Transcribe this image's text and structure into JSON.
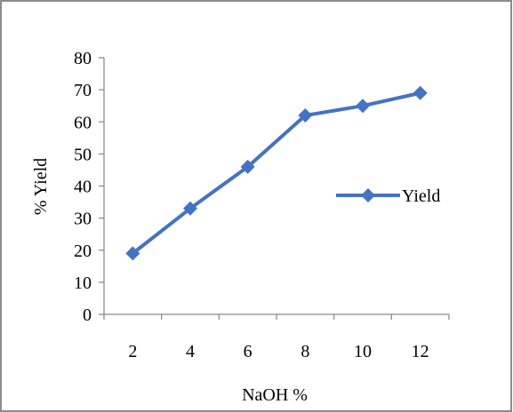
{
  "chart_data": {
    "type": "line",
    "title": "",
    "xlabel": "NaOH %",
    "ylabel": "% Yield",
    "categories": [
      "2",
      "4",
      "6",
      "8",
      "10",
      "12"
    ],
    "series": [
      {
        "name": "Yield",
        "values": [
          19,
          33,
          46,
          62,
          65,
          69
        ]
      }
    ],
    "ylim": [
      0,
      80
    ],
    "yticks": [
      "0",
      "10",
      "20",
      "30",
      "40",
      "50",
      "60",
      "70",
      "80"
    ],
    "grid": false,
    "legend_position": "right",
    "marker": "diamond",
    "series_color": "#4472C4"
  }
}
